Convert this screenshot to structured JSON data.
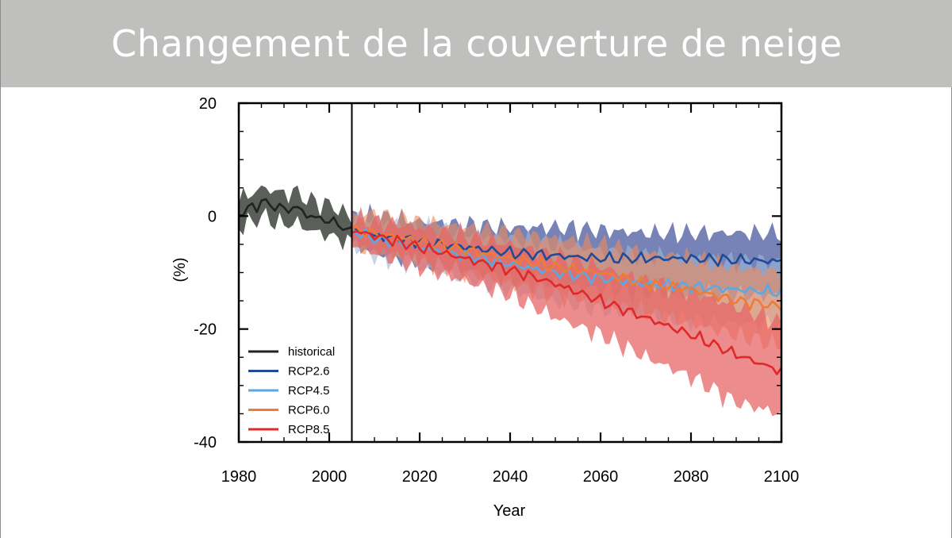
{
  "slide": {
    "title": "Changement de la couverture de neige"
  },
  "colors": {
    "title_bar": "#bfbfbe",
    "historical": "#222222",
    "historical_band": "#5a5f5a",
    "rcp26": "#1f4b99",
    "rcp26_band": "#4a5a9e",
    "rcp45": "#5aa9e6",
    "rcp45_band": "#9db9d8",
    "rcp60": "#f07b34",
    "rcp60_band": "#ee8a5a",
    "rcp85": "#e0282a",
    "rcp85_band": "#e56565"
  },
  "chart_data": {
    "type": "line",
    "title": "",
    "xlabel": "Year",
    "ylabel": "(%)",
    "xlim": [
      1980,
      2100
    ],
    "ylim": [
      -40,
      20
    ],
    "x_ticks": [
      1980,
      2000,
      2020,
      2040,
      2060,
      2080,
      2100
    ],
    "x_tick_labels": [
      "1980",
      "2000",
      "2020",
      "2040",
      "2060",
      "2080",
      "2100"
    ],
    "y_ticks": [
      20,
      0,
      -20,
      -40
    ],
    "y_tick_labels": [
      "20",
      "0",
      "-20",
      "-40"
    ],
    "vertical_line_at": 2005,
    "legend": {
      "position": "bottom-left",
      "entries": [
        "historical",
        "RCP2.6",
        "RCP4.5",
        "RCP6.0",
        "RCP8.5"
      ]
    },
    "series": [
      {
        "name": "historical",
        "color_key": "historical",
        "band_key": "historical_band",
        "band_opacity": 1.0,
        "x": [
          1980,
          1983,
          1985,
          1988,
          1990,
          1993,
          1995,
          1998,
          2000,
          2003,
          2005
        ],
        "mean": [
          0.5,
          1.5,
          2.5,
          1.8,
          1.2,
          1.5,
          0.2,
          -0.5,
          -0.8,
          -1.8,
          -3.0
        ],
        "low": [
          -2,
          -1,
          0,
          -1,
          -1.5,
          -1.2,
          -2.3,
          -3,
          -3.5,
          -4.2,
          -5
        ],
        "high": [
          3,
          4,
          5,
          4.5,
          4,
          4.2,
          3,
          2.2,
          2,
          0.8,
          -0.5
        ]
      },
      {
        "name": "RCP2.6",
        "color_key": "rcp26",
        "band_key": "rcp26_band",
        "band_opacity": 0.75,
        "x": [
          2005,
          2010,
          2020,
          2030,
          2040,
          2050,
          2060,
          2070,
          2080,
          2090,
          2100
        ],
        "mean": [
          -2.5,
          -3.5,
          -4.5,
          -5.5,
          -6.5,
          -7,
          -7.5,
          -7.5,
          -7.5,
          -7.8,
          -8
        ],
        "low": [
          -5,
          -6.5,
          -8,
          -9.5,
          -11,
          -12,
          -13,
          -13.5,
          -14,
          -14,
          -14
        ],
        "high": [
          0,
          0,
          -1,
          -1.5,
          -2,
          -2,
          -2.5,
          -3,
          -3,
          -3,
          -3
        ]
      },
      {
        "name": "RCP4.5",
        "color_key": "rcp45",
        "band_key": "rcp45_band",
        "band_opacity": 0.6,
        "x": [
          2005,
          2010,
          2020,
          2030,
          2040,
          2050,
          2060,
          2070,
          2080,
          2090,
          2100
        ],
        "mean": [
          -2.5,
          -4,
          -5.5,
          -7,
          -8.5,
          -10,
          -11,
          -12,
          -12.5,
          -13,
          -13.5
        ],
        "low": [
          -5,
          -7,
          -9,
          -11,
          -13,
          -15,
          -16.5,
          -17.5,
          -18.5,
          -19,
          -19
        ],
        "high": [
          0,
          -0.5,
          -2,
          -3,
          -4,
          -5,
          -6,
          -7,
          -7.5,
          -8,
          -8
        ]
      },
      {
        "name": "RCP6.0",
        "color_key": "rcp60",
        "band_key": "rcp60_band",
        "band_opacity": 0.6,
        "x": [
          2005,
          2010,
          2020,
          2030,
          2040,
          2050,
          2060,
          2070,
          2080,
          2090,
          2100
        ],
        "mean": [
          -2.5,
          -3,
          -4.5,
          -6,
          -7.5,
          -9,
          -10,
          -12,
          -13,
          -15,
          -16
        ],
        "low": [
          -5,
          -6,
          -8,
          -10,
          -12,
          -14,
          -15,
          -17,
          -19,
          -21,
          -23
        ],
        "high": [
          0,
          0.5,
          -1,
          -2,
          -3,
          -4,
          -5,
          -6.5,
          -7.5,
          -9,
          -10
        ]
      },
      {
        "name": "RCP8.5",
        "color_key": "rcp85",
        "band_key": "rcp85_band",
        "band_opacity": 0.75,
        "x": [
          2005,
          2010,
          2020,
          2030,
          2040,
          2050,
          2060,
          2070,
          2080,
          2090,
          2100
        ],
        "mean": [
          -2.5,
          -3.5,
          -5.5,
          -7.5,
          -9.5,
          -12,
          -15,
          -18,
          -21,
          -24.5,
          -27.5
        ],
        "low": [
          -5,
          -6.5,
          -9,
          -11.5,
          -14,
          -18,
          -21,
          -25,
          -28.5,
          -33,
          -35
        ],
        "high": [
          -0.5,
          -1,
          -2,
          -3.5,
          -5,
          -7,
          -9,
          -11.5,
          -13.5,
          -16,
          -19
        ]
      }
    ]
  }
}
